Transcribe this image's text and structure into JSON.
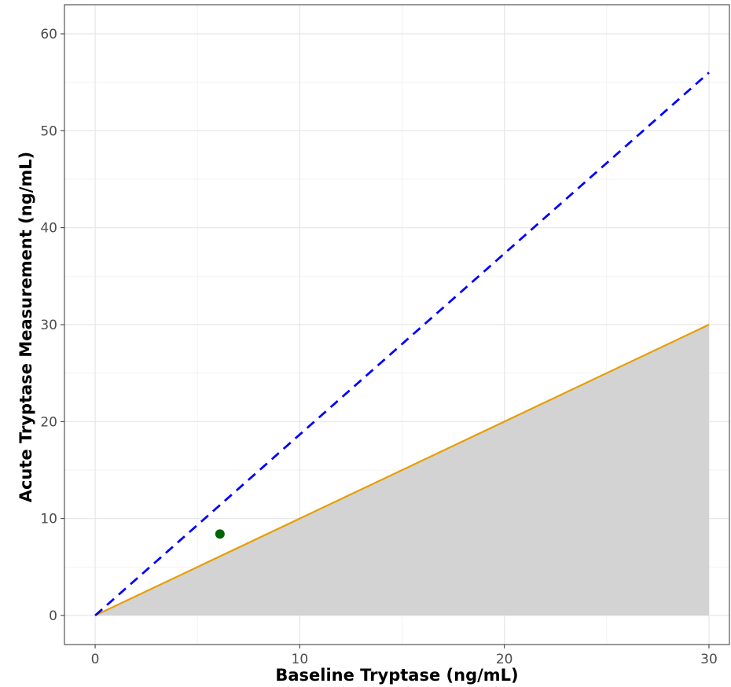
{
  "chart_data": {
    "type": "line",
    "title": "",
    "xlabel": "Baseline Tryptase (ng/mL)",
    "ylabel": "Acute Tryptase Measurement (ng/mL)",
    "xlim": [
      -1.5,
      31.0
    ],
    "ylim": [
      -3.0,
      63.0
    ],
    "x_ticks": [
      0,
      10,
      20,
      30
    ],
    "y_ticks": [
      0,
      10,
      20,
      30,
      40,
      50,
      60
    ],
    "x_minor_ticks": [
      5,
      15,
      25
    ],
    "y_minor_ticks": [
      5,
      15,
      25,
      35,
      45,
      55
    ],
    "grid": true,
    "legend": "none",
    "shaded_region": {
      "description": "area between y = 0 and y = x",
      "x": [
        0,
        30
      ],
      "y_lower": [
        0,
        0
      ],
      "y_upper": [
        0,
        30
      ],
      "color": "#d3d3d3"
    },
    "series": [
      {
        "style": "solid",
        "color": "#e69f00",
        "x": [
          0,
          30
        ],
        "y": [
          0,
          30
        ]
      },
      {
        "style": "dashed",
        "color": "#0000ff",
        "x": [
          0,
          30
        ],
        "y": [
          0,
          56
        ]
      }
    ],
    "points": [
      {
        "x": 6.1,
        "y": 8.4,
        "color": "#006400"
      }
    ]
  }
}
